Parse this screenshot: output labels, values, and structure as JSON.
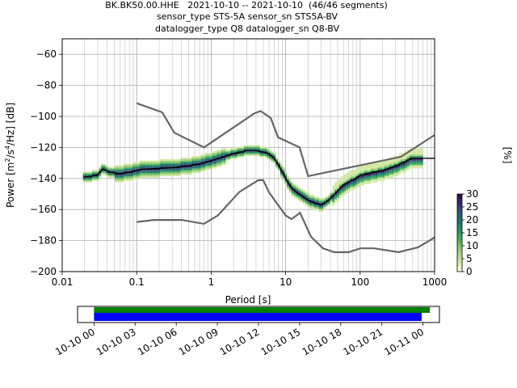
{
  "figure": {
    "title_lines": [
      "BK.BK50.00.HHE   2021-10-10 -- 2021-10-10  (46/46 segments)",
      "sensor_type STS-5A sensor_sn STS5A-BV",
      "datalogger_type Q8 datalogger_sn Q8-BV"
    ]
  },
  "chart_data": [
    {
      "type": "heatmap",
      "title": "BK.BK50.00.HHE   2021-10-10 -- 2021-10-10  (46/46 segments)",
      "xlabel": "Period [s]",
      "ylabel": "Power [m²/s⁴/Hz] [dB]",
      "x_scale": "log",
      "xlim": [
        0.01,
        1000
      ],
      "ylim": [
        -200,
        -50
      ],
      "x_ticks": [
        0.01,
        0.1,
        1,
        10,
        100,
        1000
      ],
      "x_tick_labels": [
        "0.01",
        "0.1",
        "1",
        "10",
        "100",
        "1000"
      ],
      "y_ticks": [
        -200,
        -180,
        -160,
        -140,
        -120,
        -100,
        -80,
        -60
      ],
      "y_tick_labels": [
        "−200",
        "−180",
        "−160",
        "−140",
        "−120",
        "−100",
        "−80",
        "−60"
      ],
      "grid": true,
      "colorbar": {
        "label": "[%]",
        "range": [
          0,
          30
        ],
        "ticks": [
          0,
          5,
          10,
          15,
          20,
          25,
          30
        ],
        "tick_labels": [
          "0",
          "5",
          "10",
          "15",
          "20",
          "25",
          "30"
        ],
        "colors": [
          "#ffffe0",
          "#d2e8a0",
          "#9ed17a",
          "#5db85e",
          "#2b9a5e",
          "#1e7a6a",
          "#2a5a78",
          "#352e70",
          "#2a0b3d"
        ]
      },
      "noise_models": {
        "color": "#666666",
        "high_noise_model": {
          "x": [
            0.1,
            0.22,
            0.32,
            0.8,
            3.8,
            4.6,
            6.3,
            7.9,
            15.4,
            20,
            354.8,
            1000
          ],
          "y": [
            -91.5,
            -97.4,
            -110.5,
            -120,
            -98,
            -96.5,
            -101,
            -113.5,
            -120,
            -138.5,
            -126,
            -112
          ]
        },
        "low_noise_model": {
          "x": [
            0.1,
            0.17,
            0.4,
            0.8,
            1.24,
            2.4,
            4.3,
            5.0,
            6.0,
            10.0,
            12.0,
            15.6,
            21.9,
            31.6,
            45,
            70,
            101,
            154,
            328,
            600,
            1000
          ],
          "y": [
            -168,
            -166.7,
            -166.7,
            -169.2,
            -163.7,
            -148.6,
            -141.1,
            -141.1,
            -149,
            -163.8,
            -166.2,
            -162.1,
            -177.5,
            -185,
            -187.5,
            -187.5,
            -185,
            -185,
            -187.5,
            -184.4,
            -178
          ]
        }
      },
      "mode_line": {
        "color": "#000000",
        "x": [
          0.02,
          0.025,
          0.03,
          0.035,
          0.045,
          0.06,
          0.08,
          0.12,
          0.2,
          0.3,
          0.5,
          0.8,
          1.0,
          1.5,
          2.0,
          2.5,
          3.0,
          4.0,
          5.0,
          6.0,
          7.0,
          8.0,
          10,
          12,
          15,
          20,
          25,
          30,
          35,
          40,
          50,
          60,
          80,
          100,
          150,
          200,
          300,
          500,
          1000
        ],
        "y": [
          -139,
          -138.5,
          -137.5,
          -134,
          -136,
          -137,
          -136,
          -134,
          -133.5,
          -133,
          -132,
          -130,
          -128.5,
          -126,
          -124,
          -123,
          -122,
          -122,
          -123,
          -124,
          -127,
          -131,
          -140,
          -146,
          -150,
          -154,
          -156,
          -157,
          -155,
          -153,
          -148,
          -144,
          -141,
          -138,
          -136,
          -135,
          -132,
          -127,
          -127
        ]
      },
      "time_coverage": {
        "x_tick_labels": [
          "10-10 00",
          "10-10 03",
          "10-10 06",
          "10-10 09",
          "10-10 12",
          "10-10 15",
          "10-10 18",
          "10-10 21",
          "10-11 00"
        ],
        "xlim_hours": [
          -1.2,
          25.2
        ],
        "bars": [
          {
            "color": "#008000",
            "start_hours": 0,
            "end_hours": 24.5
          },
          {
            "color": "#0000ff",
            "start_hours": 0,
            "end_hours": 23.9
          }
        ]
      }
    }
  ]
}
